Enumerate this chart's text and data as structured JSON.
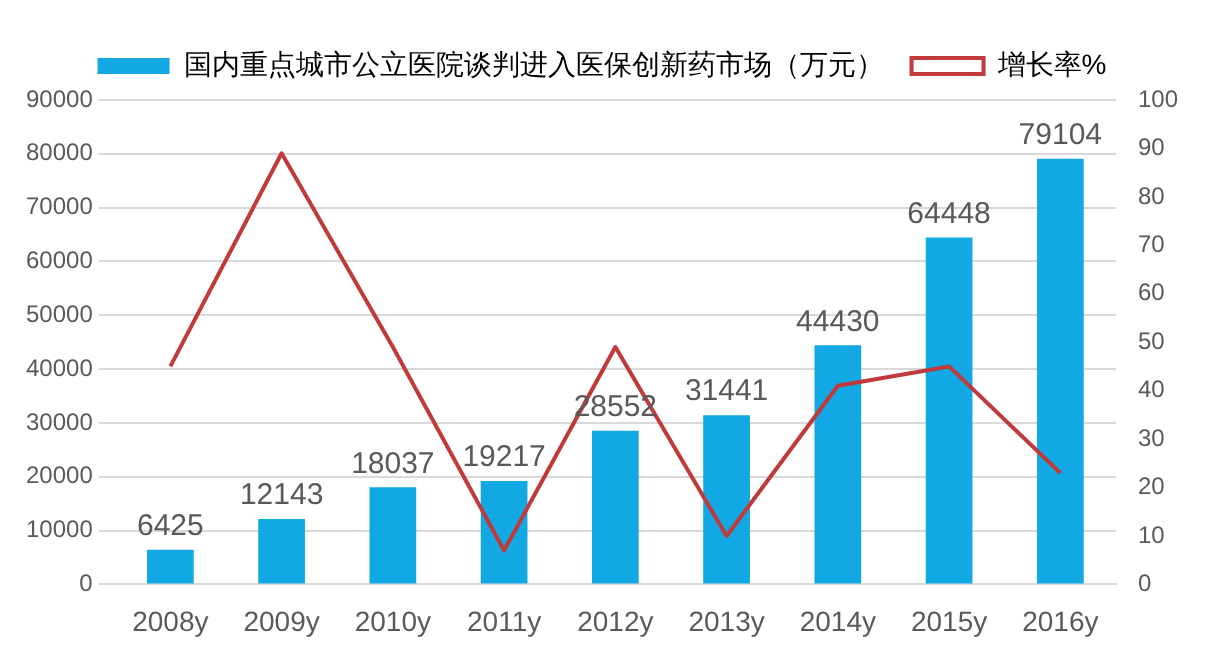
{
  "chart_data": {
    "type": "bar",
    "categories": [
      "2008y",
      "2009y",
      "2010y",
      "2011y",
      "2012y",
      "2013y",
      "2014y",
      "2015y",
      "2016y"
    ],
    "series": [
      {
        "name": "国内重点城市公立医院谈判进入医保创新药市场（万元）",
        "color": "#12a8e3",
        "values": [
          6425,
          12143,
          18037,
          19217,
          28552,
          31441,
          44430,
          64448,
          79104
        ],
        "data_labels": true
      },
      {
        "name": "增长率%",
        "type": "line",
        "axis": "y2",
        "color": "#c0393b",
        "values": [
          45,
          89,
          49,
          7,
          49,
          10,
          41,
          45,
          23
        ],
        "marker": "none"
      }
    ],
    "ylim": [
      0,
      90000
    ],
    "yticks": [
      0,
      10000,
      20000,
      30000,
      40000,
      50000,
      60000,
      70000,
      80000,
      90000
    ],
    "y2lim": [
      0,
      100
    ],
    "y2ticks": [
      0,
      10,
      20,
      30,
      40,
      50,
      60,
      70,
      80,
      90,
      100
    ],
    "grid": "y",
    "legend": "top"
  }
}
